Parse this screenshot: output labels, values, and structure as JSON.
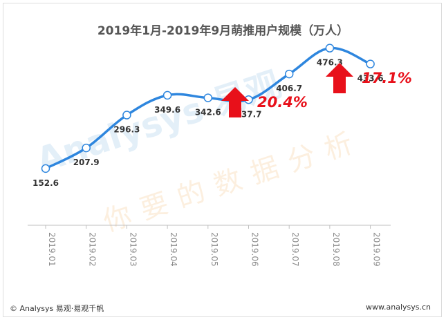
{
  "chart_data": {
    "type": "line",
    "title": "2019年1月-2019年9月萌推用户规模（万人）",
    "categories": [
      "2019.01",
      "2019.02",
      "2019.03",
      "2019.04",
      "2019.05",
      "2019.06",
      "2019.07",
      "2019.08",
      "2019.09"
    ],
    "values": [
      152.6,
      207.9,
      296.3,
      349.6,
      342.6,
      337.7,
      406.7,
      476.3,
      433.6
    ],
    "value_labels": [
      "152.6",
      "207.9",
      "296.3",
      "349.6",
      "342.6",
      "337.7",
      "406.7",
      "476.3",
      "433.6"
    ],
    "ylim": [
      0,
      550
    ],
    "grid": false,
    "line_color": "#2e86de",
    "annotations": [
      {
        "text": "20.4%",
        "at_category": "2019.07",
        "color": "#e8101a"
      },
      {
        "text": "17.1%",
        "at_category": "2019.08",
        "color": "#e8101a"
      }
    ]
  },
  "watermark": {
    "brand": "Analysys 易观",
    "slogan": "你要的数据分析"
  },
  "footer": {
    "left": "© Analysys 易观·易观千帆",
    "right": "www.analysys.cn"
  }
}
